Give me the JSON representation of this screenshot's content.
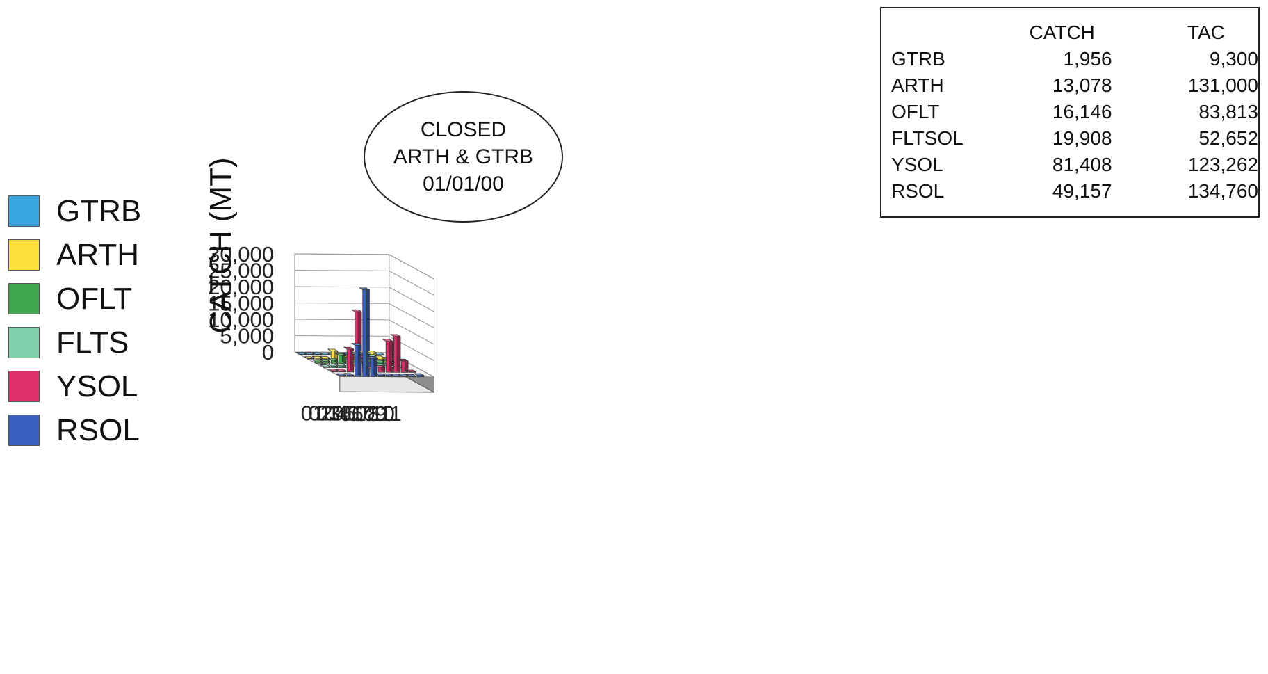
{
  "chart_data": {
    "type": "bar",
    "subtype": "3d-column",
    "ylabel": "CATCH (MT)",
    "ylim": [
      0,
      30000
    ],
    "yticks": [
      "0",
      "5,000",
      "10,000",
      "15,000",
      "20,000",
      "25,000",
      "30,000"
    ],
    "categories": [
      "01",
      "02",
      "03",
      "04",
      "05",
      "06",
      "07",
      "08",
      "09",
      "10",
      "11"
    ],
    "legend_position": "left",
    "gridlines": true,
    "series": [
      {
        "name": "GTRB",
        "color": "#3aa6df",
        "values": [
          150,
          150,
          150,
          100,
          150,
          150,
          150,
          150,
          150,
          150,
          150
        ]
      },
      {
        "name": "ARTH",
        "color": "#fde13a",
        "values": [
          150,
          300,
          300,
          2500,
          1200,
          500,
          2000,
          2000,
          2000,
          500,
          150
        ]
      },
      {
        "name": "OFLT",
        "color": "#3ea84c",
        "values": [
          500,
          600,
          1000,
          2500,
          2200,
          500,
          800,
          500,
          500,
          400,
          150
        ]
      },
      {
        "name": "FLTS",
        "color": "#7fcfaa",
        "values": [
          300,
          500,
          600,
          3500,
          800,
          1500,
          3500,
          800,
          700,
          200,
          100
        ]
      },
      {
        "name": "YSOL",
        "color": "#e0306c",
        "values": [
          300,
          300,
          7000,
          18500,
          4500,
          1000,
          1500,
          9500,
          11000,
          3500,
          150
        ]
      },
      {
        "name": "RSOL",
        "color": "#3a60c0",
        "values": [
          200,
          300,
          9500,
          26500,
          5500,
          300,
          300,
          200,
          200,
          150,
          400
        ]
      }
    ]
  },
  "annotation": {
    "lines": [
      "CLOSED",
      "ARTH & GTRB",
      "01/01/00"
    ]
  },
  "summary_table": {
    "headers": [
      "",
      "CATCH",
      "TAC"
    ],
    "rows": [
      {
        "name": "GTRB",
        "catch": "1,956",
        "tac": "9,300"
      },
      {
        "name": "ARTH",
        "catch": "13,078",
        "tac": "131,000"
      },
      {
        "name": "OFLT",
        "catch": "16,146",
        "tac": "83,813"
      },
      {
        "name": "FLTSOL",
        "catch": "19,908",
        "tac": "52,652"
      },
      {
        "name": "YSOL",
        "catch": "81,408",
        "tac": "123,262"
      },
      {
        "name": "RSOL",
        "catch": "49,157",
        "tac": "134,760"
      }
    ]
  }
}
